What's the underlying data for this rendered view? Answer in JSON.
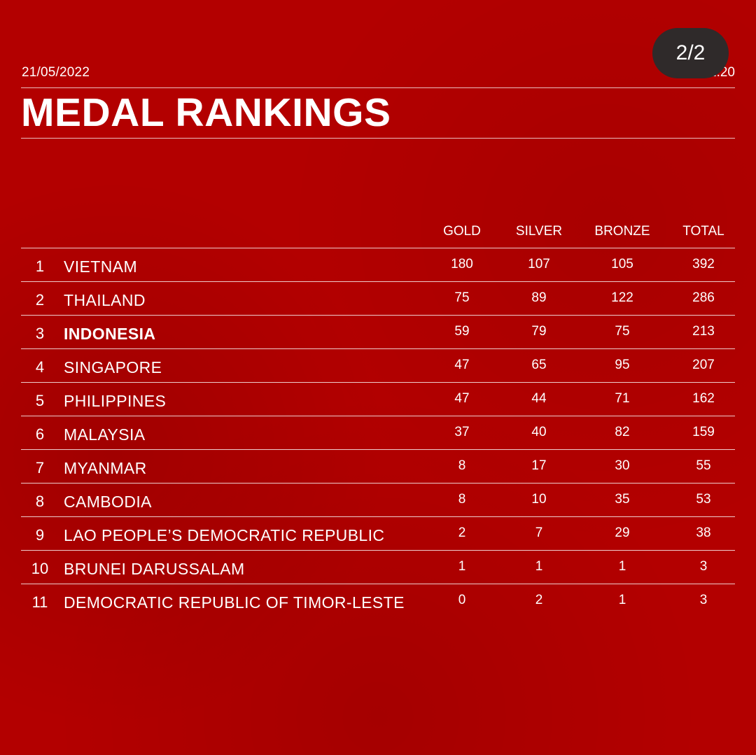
{
  "header": {
    "date": "21/05/2022",
    "time": "22.20",
    "title": "MEDAL RANKINGS",
    "pager": "2/2"
  },
  "table": {
    "columns": [
      "GOLD",
      "SILVER",
      "BRONZE",
      "TOTAL"
    ],
    "rows": [
      {
        "rank": "1",
        "country": "VIETNAM",
        "gold": "180",
        "silver": "107",
        "bronze": "105",
        "total": "392"
      },
      {
        "rank": "2",
        "country": "THAILAND",
        "gold": "75",
        "silver": "89",
        "bronze": "122",
        "total": "286"
      },
      {
        "rank": "3",
        "country": "INDONESIA",
        "gold": "59",
        "silver": "79",
        "bronze": "75",
        "total": "213"
      },
      {
        "rank": "4",
        "country": "SINGAPORE",
        "gold": "47",
        "silver": "65",
        "bronze": "95",
        "total": "207"
      },
      {
        "rank": "5",
        "country": "PHILIPPINES",
        "gold": "47",
        "silver": "44",
        "bronze": "71",
        "total": "162"
      },
      {
        "rank": "6",
        "country": "MALAYSIA",
        "gold": "37",
        "silver": "40",
        "bronze": "82",
        "total": "159"
      },
      {
        "rank": "7",
        "country": "MYANMAR",
        "gold": "8",
        "silver": "17",
        "bronze": "30",
        "total": "55"
      },
      {
        "rank": "8",
        "country": "CAMBODIA",
        "gold": "8",
        "silver": "10",
        "bronze": "35",
        "total": "53"
      },
      {
        "rank": "9",
        "country": "LAO PEOPLE’S DEMOCRATIC REPUBLIC",
        "gold": "2",
        "silver": "7",
        "bronze": "29",
        "total": "38"
      },
      {
        "rank": "10",
        "country": "BRUNEI DARUSSALAM",
        "gold": "1",
        "silver": "1",
        "bronze": "1",
        "total": "3"
      },
      {
        "rank": "11",
        "country": "DEMOCRATIC REPUBLIC OF TIMOR-LESTE",
        "gold": "0",
        "silver": "2",
        "bronze": "1",
        "total": "3"
      }
    ]
  }
}
